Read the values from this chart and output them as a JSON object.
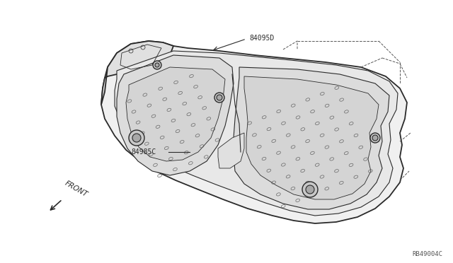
{
  "background_color": "#ffffff",
  "line_color": "#2a2a2a",
  "part_label_1": "84095D",
  "part_label_2": "84985C",
  "front_label": "FRONT",
  "diagram_id": "RB49004C",
  "figsize": [
    6.4,
    3.72
  ],
  "dpi": 100
}
